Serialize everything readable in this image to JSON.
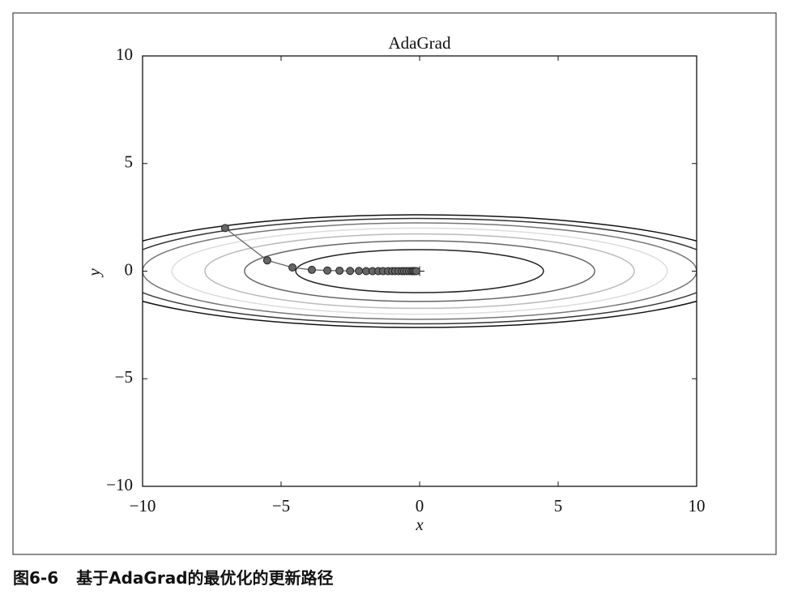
{
  "chart_data": {
    "type": "line",
    "title": "AdaGrad",
    "x_label": "x",
    "y_label": "y",
    "xlim": [
      -10,
      10
    ],
    "ylim": [
      -10,
      10
    ],
    "xticks": [
      {
        "value": -10,
        "label": "−10"
      },
      {
        "value": -5,
        "label": "−5"
      },
      0,
      5,
      10
    ],
    "yticks": [
      {
        "value": -10,
        "label": "−10"
      },
      {
        "value": -5,
        "label": "−5"
      },
      0,
      5,
      10
    ],
    "contours": [
      {
        "rx": 4.47,
        "ry": 1.0,
        "color": "#222222"
      },
      {
        "rx": 6.32,
        "ry": 1.41,
        "color": "#666666"
      },
      {
        "rx": 7.75,
        "ry": 1.73,
        "color": "#bbbbbb"
      },
      {
        "rx": 8.94,
        "ry": 2.0,
        "color": "#dddddd"
      },
      {
        "rx": 10.0,
        "ry": 2.24,
        "color": "#777777"
      },
      {
        "rx": 10.95,
        "ry": 2.45,
        "color": "#333333"
      },
      {
        "rx": 11.83,
        "ry": 2.62,
        "color": "#111111"
      }
    ],
    "x": [
      -7.02,
      -5.5,
      -4.59,
      -3.89,
      -3.33,
      -2.89,
      -2.51,
      -2.19,
      -1.93,
      -1.7,
      -1.49,
      -1.32,
      -1.14,
      -0.99,
      -0.88,
      -0.76,
      -0.64,
      -0.56,
      -0.47,
      -0.38,
      -0.29,
      -0.23,
      -0.18,
      -0.12
    ],
    "series": [
      {
        "color": "#666666",
        "values": [
          2.0,
          0.5,
          0.17,
          0.06,
          0.03,
          0.02,
          0.01,
          0.01,
          0,
          0,
          0,
          0,
          0,
          0,
          0,
          0,
          0,
          0,
          0,
          0,
          0,
          0,
          0,
          0
        ]
      }
    ]
  },
  "caption": {
    "label": "图6-6",
    "text": "基于AdaGrad的最优化的更新路径"
  }
}
